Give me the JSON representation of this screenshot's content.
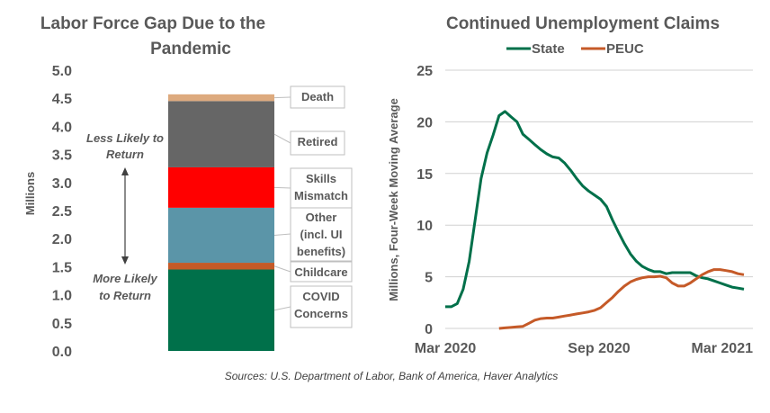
{
  "chart_data": [
    {
      "type": "bar",
      "subtype": "stacked",
      "title": "Labor Force Gap Due to the Pandemic",
      "title_lines": [
        "Labor Force Gap Due to the",
        "Pandemic"
      ],
      "ylabel": "Millions",
      "ylim": [
        0,
        5
      ],
      "yticks": [
        "0.0",
        "0.5",
        "1.0",
        "1.5",
        "2.0",
        "2.5",
        "3.0",
        "3.5",
        "4.0",
        "4.5",
        "5.0"
      ],
      "series": [
        {
          "name": "COVID Concerns",
          "label_lines": [
            "COVID",
            "Concerns"
          ],
          "value": 1.45,
          "color": "#00704A"
        },
        {
          "name": "Childcare",
          "label_lines": [
            "Childcare"
          ],
          "value": 0.12,
          "color": "#C55A28"
        },
        {
          "name": "Other (incl. UI benefits)",
          "label_lines": [
            "Other",
            "(incl. UI",
            "benefits)"
          ],
          "value": 0.98,
          "color": "#5B95A8"
        },
        {
          "name": "Skills Mismatch",
          "label_lines": [
            "Skills",
            "Mismatch"
          ],
          "value": 0.72,
          "color": "#FF0000"
        },
        {
          "name": "Retired",
          "label_lines": [
            "Retired"
          ],
          "value": 1.18,
          "color": "#666666"
        },
        {
          "name": "Death",
          "label_lines": [
            "Death"
          ],
          "value": 0.12,
          "color": "#DDAA7E"
        }
      ],
      "annotations": {
        "top": [
          "Less Likely to",
          "Return"
        ],
        "bottom": [
          "More Likely",
          "to Return"
        ]
      },
      "grid": false
    },
    {
      "type": "line",
      "title": "Continued Unemployment Claims",
      "ylabel": "Millions, Four-Week Moving Average",
      "xlabel": "",
      "ylim": [
        0,
        25
      ],
      "yticks": [
        "0",
        "5",
        "10",
        "15",
        "20",
        "25"
      ],
      "xticks": [
        "Mar 2020",
        "Sep 2020",
        "Mar 2021"
      ],
      "x_unit": "weeks since Mar 2020 (0 = Mar 2020, 26 = Sep 2020, 52 = Mar 2021)",
      "legend_position": "top-center",
      "grid": true,
      "series": [
        {
          "name": "State",
          "color": "#00704A",
          "points": [
            [
              0,
              2.1
            ],
            [
              1,
              2.1
            ],
            [
              2,
              2.4
            ],
            [
              3,
              3.8
            ],
            [
              4,
              6.5
            ],
            [
              5,
              10.5
            ],
            [
              6,
              14.5
            ],
            [
              7,
              17.0
            ],
            [
              8,
              18.7
            ],
            [
              9,
              20.6
            ],
            [
              10,
              21.0
            ],
            [
              11,
              20.5
            ],
            [
              12,
              20.0
            ],
            [
              13,
              18.8
            ],
            [
              14,
              18.3
            ],
            [
              15,
              17.8
            ],
            [
              16,
              17.3
            ],
            [
              17,
              16.9
            ],
            [
              18,
              16.6
            ],
            [
              19,
              16.5
            ],
            [
              20,
              16.0
            ],
            [
              21,
              15.3
            ],
            [
              22,
              14.5
            ],
            [
              23,
              13.8
            ],
            [
              24,
              13.3
            ],
            [
              25,
              12.9
            ],
            [
              26,
              12.5
            ],
            [
              27,
              11.8
            ],
            [
              28,
              10.5
            ],
            [
              29,
              9.3
            ],
            [
              30,
              8.2
            ],
            [
              31,
              7.2
            ],
            [
              32,
              6.5
            ],
            [
              33,
              6.0
            ],
            [
              34,
              5.7
            ],
            [
              35,
              5.5
            ],
            [
              36,
              5.5
            ],
            [
              37,
              5.3
            ],
            [
              38,
              5.4
            ],
            [
              39,
              5.4
            ],
            [
              40,
              5.4
            ],
            [
              41,
              5.4
            ],
            [
              42,
              5.1
            ],
            [
              43,
              4.9
            ],
            [
              44,
              4.8
            ],
            [
              45,
              4.6
            ],
            [
              46,
              4.4
            ],
            [
              47,
              4.2
            ],
            [
              48,
              4.0
            ],
            [
              49,
              3.9
            ],
            [
              50,
              3.8
            ]
          ]
        },
        {
          "name": "PEUC",
          "color": "#C55A28",
          "points": [
            [
              9,
              0.0
            ],
            [
              10,
              0.05
            ],
            [
              11,
              0.1
            ],
            [
              12,
              0.15
            ],
            [
              13,
              0.2
            ],
            [
              14,
              0.5
            ],
            [
              15,
              0.8
            ],
            [
              16,
              0.95
            ],
            [
              17,
              1.0
            ],
            [
              18,
              1.0
            ],
            [
              19,
              1.1
            ],
            [
              20,
              1.2
            ],
            [
              21,
              1.3
            ],
            [
              22,
              1.4
            ],
            [
              23,
              1.5
            ],
            [
              24,
              1.6
            ],
            [
              25,
              1.75
            ],
            [
              26,
              2.0
            ],
            [
              27,
              2.5
            ],
            [
              28,
              3.0
            ],
            [
              29,
              3.6
            ],
            [
              30,
              4.1
            ],
            [
              31,
              4.5
            ],
            [
              32,
              4.75
            ],
            [
              33,
              4.9
            ],
            [
              34,
              5.0
            ],
            [
              35,
              5.0
            ],
            [
              36,
              5.05
            ],
            [
              37,
              4.9
            ],
            [
              38,
              4.4
            ],
            [
              39,
              4.1
            ],
            [
              40,
              4.1
            ],
            [
              41,
              4.4
            ],
            [
              42,
              4.8
            ],
            [
              43,
              5.2
            ],
            [
              44,
              5.5
            ],
            [
              45,
              5.7
            ],
            [
              46,
              5.7
            ],
            [
              47,
              5.6
            ],
            [
              48,
              5.5
            ],
            [
              49,
              5.3
            ],
            [
              50,
              5.2
            ]
          ]
        }
      ]
    }
  ],
  "footer": {
    "source": "Sources: U.S. Department of Labor, Bank of America, Haver Analytics"
  }
}
